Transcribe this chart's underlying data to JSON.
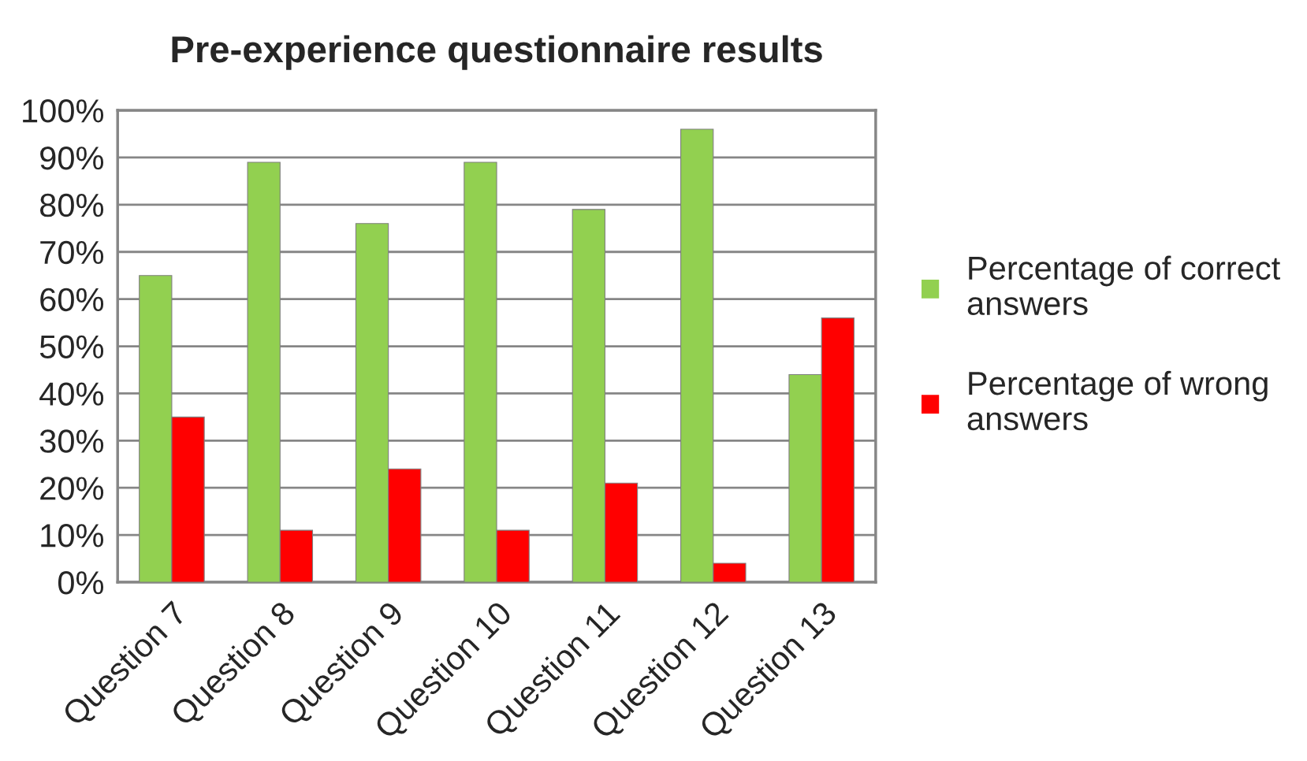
{
  "chart_data": {
    "type": "bar",
    "title": "Pre-experience questionnaire results",
    "categories": [
      "Question 7",
      "Question 8",
      "Question 9",
      "Question 10",
      "Question 11",
      "Question 12",
      "Question 13"
    ],
    "series": [
      {
        "name": "Percentage of correct answers",
        "color": "#92d050",
        "values": [
          65,
          89,
          76,
          89,
          79,
          96,
          44
        ]
      },
      {
        "name": "Percentage of wrong answers",
        "color": "#ff0000",
        "values": [
          35,
          11,
          24,
          11,
          21,
          4,
          56
        ]
      }
    ],
    "ylim": [
      0,
      100
    ],
    "yticks": [
      {
        "value": 0,
        "label": "0%"
      },
      {
        "value": 10,
        "label": "10%"
      },
      {
        "value": 20,
        "label": "20%"
      },
      {
        "value": 30,
        "label": "30%"
      },
      {
        "value": 40,
        "label": "40%"
      },
      {
        "value": 50,
        "label": "50%"
      },
      {
        "value": 60,
        "label": "60%"
      },
      {
        "value": 70,
        "label": "70%"
      },
      {
        "value": 80,
        "label": "80%"
      },
      {
        "value": 90,
        "label": "90%"
      },
      {
        "value": 100,
        "label": "100%"
      }
    ],
    "grid": "y",
    "legend": "right"
  }
}
